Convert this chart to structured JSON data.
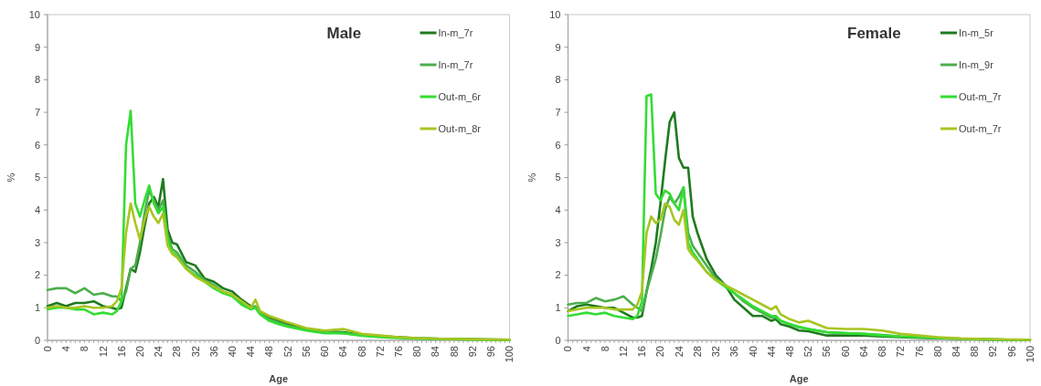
{
  "chart_data": [
    {
      "type": "line",
      "title": "Male",
      "xlabel": "Age",
      "ylabel": "%",
      "legend": "top right",
      "grid": false,
      "marker": "none",
      "line_style": "solid",
      "xlim": [
        0,
        100
      ],
      "xticks": [
        0,
        4,
        8,
        12,
        16,
        20,
        24,
        28,
        32,
        36,
        40,
        44,
        48,
        52,
        56,
        60,
        64,
        68,
        72,
        76,
        80,
        84,
        88,
        92,
        96,
        100
      ],
      "ylim": [
        0,
        10
      ],
      "yticks": [
        0,
        1,
        2,
        3,
        4,
        5,
        6,
        7,
        8,
        9,
        10
      ],
      "x": [
        0,
        2,
        4,
        6,
        8,
        10,
        12,
        14,
        15,
        16,
        17,
        18,
        19,
        20,
        21,
        22,
        23,
        24,
        25,
        26,
        27,
        28,
        30,
        32,
        34,
        36,
        38,
        40,
        42,
        44,
        45,
        46,
        48,
        50,
        52,
        56,
        60,
        64,
        68,
        72,
        76,
        80,
        85,
        90,
        95,
        100
      ],
      "series": [
        {
          "name": "In-m_7r",
          "color": "#1e7b1e",
          "values": [
            1.05,
            1.15,
            1.05,
            1.15,
            1.15,
            1.2,
            1.05,
            1.0,
            0.95,
            1.0,
            1.6,
            2.2,
            2.1,
            2.7,
            3.5,
            4.2,
            4.4,
            4.1,
            4.95,
            3.4,
            3.0,
            2.95,
            2.4,
            2.3,
            1.9,
            1.8,
            1.6,
            1.5,
            1.25,
            1.05,
            1.0,
            0.85,
            0.7,
            0.6,
            0.5,
            0.35,
            0.28,
            0.25,
            0.18,
            0.13,
            0.1,
            0.07,
            0.05,
            0.04,
            0.03,
            0.02
          ]
        },
        {
          "name": "In-m_7r",
          "color": "#4cae4c",
          "values": [
            1.55,
            1.6,
            1.6,
            1.45,
            1.6,
            1.4,
            1.45,
            1.35,
            1.35,
            1.2,
            1.5,
            2.2,
            2.3,
            3.0,
            3.9,
            4.6,
            4.3,
            4.0,
            4.3,
            3.2,
            2.8,
            2.7,
            2.3,
            2.1,
            1.85,
            1.7,
            1.5,
            1.4,
            1.15,
            1.0,
            1.05,
            0.85,
            0.65,
            0.55,
            0.45,
            0.32,
            0.25,
            0.22,
            0.16,
            0.12,
            0.09,
            0.06,
            0.05,
            0.03,
            0.03,
            0.02
          ]
        },
        {
          "name": "Out-m_6r",
          "color": "#33dd33",
          "values": [
            0.95,
            1.0,
            1.0,
            0.95,
            0.95,
            0.8,
            0.85,
            0.8,
            0.9,
            1.2,
            6.0,
            7.05,
            4.2,
            3.8,
            4.3,
            4.75,
            4.2,
            3.9,
            4.1,
            3.1,
            2.7,
            2.6,
            2.2,
            2.0,
            1.8,
            1.6,
            1.45,
            1.35,
            1.1,
            0.95,
            1.0,
            0.8,
            0.6,
            0.5,
            0.42,
            0.3,
            0.22,
            0.22,
            0.14,
            0.1,
            0.07,
            0.05,
            0.04,
            0.03,
            0.02,
            0.02
          ]
        },
        {
          "name": "Out-m_8r",
          "color": "#a8c520",
          "values": [
            1.0,
            1.05,
            1.0,
            1.0,
            1.05,
            1.0,
            1.0,
            1.05,
            1.2,
            1.6,
            3.3,
            4.2,
            3.6,
            3.1,
            3.7,
            4.1,
            3.8,
            3.6,
            3.9,
            2.9,
            2.65,
            2.55,
            2.2,
            1.95,
            1.8,
            1.65,
            1.5,
            1.4,
            1.2,
            1.0,
            1.25,
            0.9,
            0.75,
            0.65,
            0.55,
            0.38,
            0.3,
            0.35,
            0.2,
            0.15,
            0.1,
            0.07,
            0.05,
            0.04,
            0.03,
            0.02
          ]
        }
      ]
    },
    {
      "type": "line",
      "title": "Female",
      "xlabel": "Age",
      "ylabel": "%",
      "legend": "top right",
      "grid": false,
      "marker": "none",
      "line_style": "solid",
      "xlim": [
        0,
        100
      ],
      "xticks": [
        0,
        4,
        8,
        12,
        16,
        20,
        24,
        28,
        32,
        36,
        40,
        44,
        48,
        52,
        56,
        60,
        64,
        68,
        72,
        76,
        80,
        84,
        88,
        92,
        96,
        100
      ],
      "ylim": [
        0,
        10
      ],
      "yticks": [
        0,
        1,
        2,
        3,
        4,
        5,
        6,
        7,
        8,
        9,
        10
      ],
      "x": [
        0,
        2,
        4,
        6,
        8,
        10,
        12,
        14,
        15,
        16,
        17,
        18,
        19,
        20,
        21,
        22,
        23,
        24,
        25,
        26,
        27,
        28,
        30,
        32,
        34,
        36,
        38,
        40,
        42,
        44,
        45,
        46,
        48,
        50,
        52,
        56,
        60,
        64,
        68,
        72,
        76,
        80,
        85,
        90,
        95,
        100
      ],
      "series": [
        {
          "name": "In-m_5r",
          "color": "#1e7b1e",
          "values": [
            0.9,
            1.05,
            1.1,
            1.05,
            1.0,
            1.0,
            0.85,
            0.7,
            0.7,
            0.75,
            1.5,
            2.2,
            3.0,
            4.2,
            5.5,
            6.7,
            7.0,
            5.6,
            5.3,
            5.3,
            3.8,
            3.3,
            2.5,
            2.0,
            1.7,
            1.25,
            1.0,
            0.75,
            0.75,
            0.6,
            0.65,
            0.5,
            0.42,
            0.3,
            0.28,
            0.15,
            0.15,
            0.15,
            0.12,
            0.1,
            0.08,
            0.07,
            0.05,
            0.03,
            0.02,
            0.02
          ]
        },
        {
          "name": "In-m_9r",
          "color": "#4cae4c",
          "values": [
            1.1,
            1.15,
            1.15,
            1.3,
            1.2,
            1.25,
            1.35,
            1.1,
            1.0,
            0.9,
            1.5,
            2.0,
            2.5,
            3.2,
            4.0,
            4.4,
            4.2,
            4.4,
            4.7,
            3.3,
            2.9,
            2.7,
            2.3,
            1.9,
            1.7,
            1.45,
            1.2,
            1.0,
            0.85,
            0.7,
            0.7,
            0.6,
            0.5,
            0.4,
            0.35,
            0.25,
            0.22,
            0.2,
            0.17,
            0.12,
            0.1,
            0.08,
            0.05,
            0.04,
            0.02,
            0.02
          ]
        },
        {
          "name": "Out-m_7r",
          "color": "#33dd33",
          "values": [
            0.75,
            0.8,
            0.85,
            0.8,
            0.85,
            0.75,
            0.7,
            0.65,
            0.75,
            1.2,
            7.5,
            7.55,
            4.5,
            4.3,
            4.6,
            4.5,
            4.2,
            4.0,
            4.7,
            3.0,
            2.7,
            2.5,
            2.1,
            1.85,
            1.65,
            1.45,
            1.25,
            1.05,
            0.9,
            0.75,
            0.75,
            0.6,
            0.5,
            0.42,
            0.35,
            0.25,
            0.22,
            0.2,
            0.15,
            0.12,
            0.1,
            0.07,
            0.05,
            0.03,
            0.02,
            0.02
          ]
        },
        {
          "name": "Out-m_7r",
          "color": "#a8c520",
          "values": [
            0.9,
            0.95,
            1.0,
            1.0,
            1.0,
            0.95,
            0.95,
            0.95,
            1.1,
            1.5,
            3.3,
            3.8,
            3.6,
            3.7,
            4.2,
            4.1,
            3.7,
            3.55,
            4.0,
            2.8,
            2.6,
            2.45,
            2.1,
            1.85,
            1.7,
            1.55,
            1.4,
            1.25,
            1.1,
            0.95,
            1.05,
            0.8,
            0.65,
            0.55,
            0.6,
            0.38,
            0.35,
            0.35,
            0.3,
            0.2,
            0.15,
            0.1,
            0.06,
            0.04,
            0.03,
            0.02
          ]
        }
      ]
    }
  ]
}
